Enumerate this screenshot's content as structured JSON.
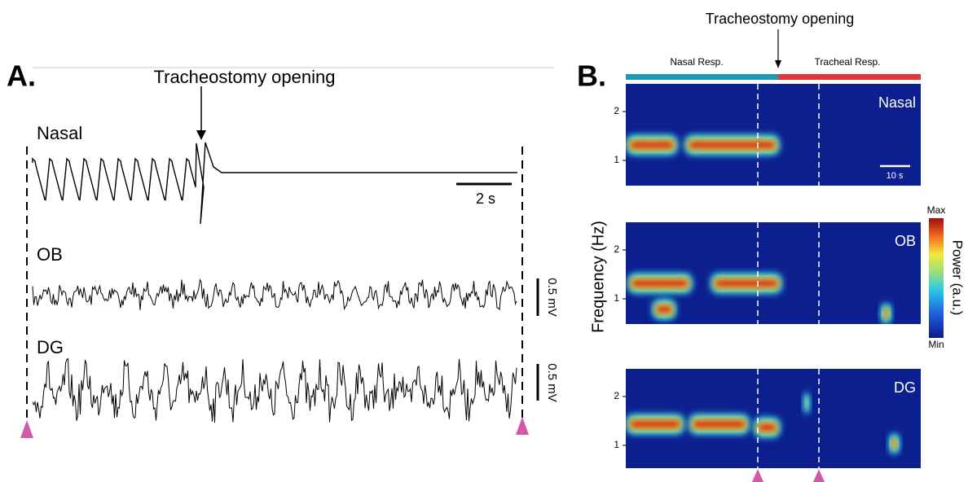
{
  "panel_a": {
    "label": "A.",
    "annotation": "Tracheostomy opening",
    "traces": [
      {
        "name": "Nasal"
      },
      {
        "name": "OB",
        "scale_bar": "0.5 mV"
      },
      {
        "name": "DG",
        "scale_bar": "0.5 mV"
      }
    ],
    "time_scale_bar": "2 s"
  },
  "panel_b": {
    "label": "B.",
    "annotation": "Tracheostomy opening",
    "phases": [
      "Nasal Resp.",
      "Tracheal Resp."
    ],
    "y_axis_label": "Frequency (Hz)",
    "colorbar": {
      "title": "Power (a.u.)",
      "max_label": "Max",
      "min_label": "Min"
    },
    "spectrograms": [
      {
        "name": "Nasal",
        "yticks": [
          "2",
          "1"
        ],
        "time_scale_bar": "10 s"
      },
      {
        "name": "OB",
        "yticks": [
          "2",
          "1"
        ]
      },
      {
        "name": "DG",
        "yticks": [
          "2",
          "1"
        ]
      }
    ]
  }
}
